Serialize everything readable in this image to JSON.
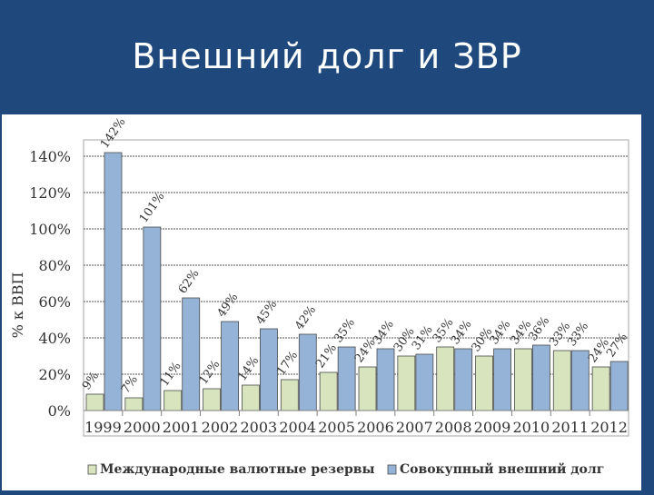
{
  "slide": {
    "title": "Внешний долг и ЗВР"
  },
  "chart_data": {
    "type": "bar",
    "title": "",
    "xlabel": "",
    "ylabel": "% к ВВП",
    "ylim": [
      0,
      150
    ],
    "yticks": [
      0,
      20,
      40,
      60,
      80,
      100,
      120,
      140
    ],
    "ytick_labels": [
      "0%",
      "20%",
      "40%",
      "60%",
      "80%",
      "100%",
      "120%",
      "140%"
    ],
    "grid": "horizontal",
    "legend_position": "bottom",
    "categories": [
      "1999",
      "2000",
      "2001",
      "2002",
      "2003",
      "2004",
      "2005",
      "2006",
      "2007",
      "2008",
      "2009",
      "2010",
      "2011",
      "2012"
    ],
    "series": [
      {
        "name": "Международные валютные резервы",
        "color": "#d7e4bd",
        "values": [
          9,
          7,
          11,
          12,
          14,
          17,
          21,
          24,
          30,
          35,
          30,
          34,
          33,
          24
        ],
        "labels": [
          "9%",
          "7%",
          "11%",
          "12%",
          "14%",
          "17%",
          "21%",
          "24%",
          "30%",
          "35%",
          "30%",
          "34%",
          "33%",
          "24%"
        ]
      },
      {
        "name": "Совокупный внешний долг",
        "color": "#95b3d7",
        "values": [
          142,
          101,
          62,
          49,
          45,
          42,
          35,
          34,
          31,
          34,
          34,
          36,
          33,
          27
        ],
        "labels": [
          "142%",
          "101%",
          "62%",
          "49%",
          "45%",
          "42%",
          "35%",
          "34%",
          "31%",
          "34%",
          "34%",
          "36%",
          "33%",
          "27%"
        ]
      }
    ]
  }
}
